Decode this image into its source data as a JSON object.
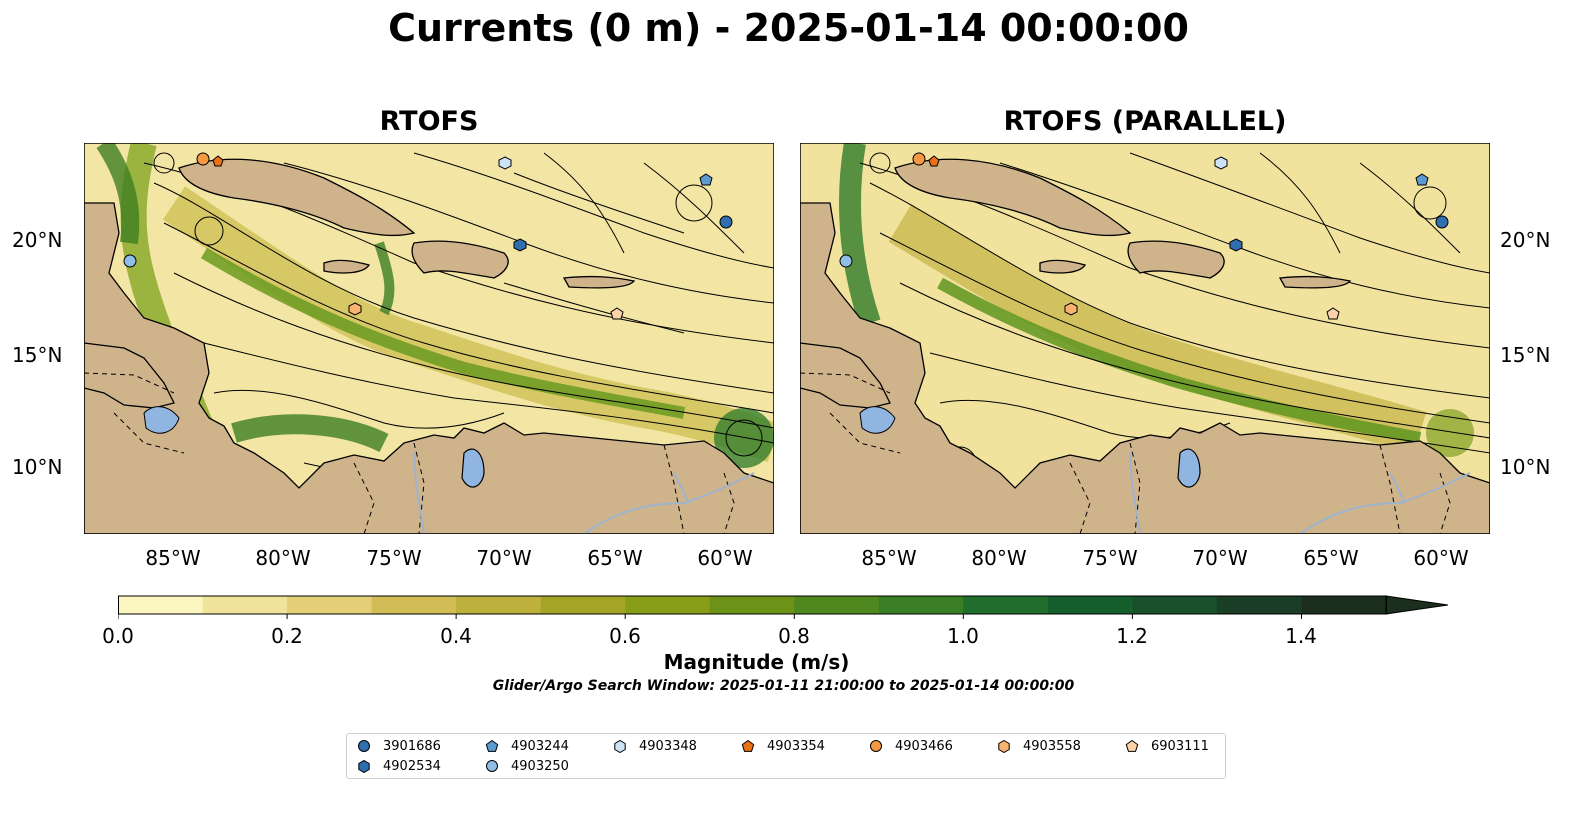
{
  "title": "Currents (0 m) - 2025-01-14 00:00:00",
  "panels": [
    {
      "title": "RTOFS"
    },
    {
      "title": "RTOFS (PARALLEL)"
    }
  ],
  "axes": {
    "x_ticks": [
      "85°W",
      "80°W",
      "75°W",
      "70°W",
      "65°W",
      "60°W"
    ],
    "y_ticks": [
      "20°N",
      "15°N",
      "10°N"
    ],
    "lon_range": [
      -89.5,
      -58.3
    ],
    "lat_range": [
      7,
      24.5
    ]
  },
  "colorbar": {
    "label": "Magnitude (m/s)",
    "ticks": [
      "0.0",
      "0.2",
      "0.4",
      "0.6",
      "0.8",
      "1.0",
      "1.2",
      "1.4"
    ],
    "range": [
      0,
      1.5
    ],
    "extend": "max",
    "colors": [
      "#fbf6c0",
      "#f0e49a",
      "#e2cf78",
      "#d1bc56",
      "#bdb03c",
      "#a4a526",
      "#889e18",
      "#6c9218",
      "#508820",
      "#3a7e24",
      "#1f6e2c",
      "#155f2c",
      "#17502a",
      "#1a3f26",
      "#1c2f1e"
    ]
  },
  "search_window": "Glider/Argo Search Window: 2025-01-11 21:00:00 to 2025-01-14 00:00:00",
  "legend": [
    {
      "label": "3901686",
      "marker": "circle",
      "color": "#2f6fb0"
    },
    {
      "label": "4902534",
      "marker": "hexagon",
      "color": "#2f6fb0"
    },
    {
      "label": "4903244",
      "marker": "pentagon",
      "color": "#5c9bd2"
    },
    {
      "label": "4903250",
      "marker": "circle",
      "color": "#8fbde6"
    },
    {
      "label": "4903348",
      "marker": "hexagon",
      "color": "#cde3f7"
    },
    {
      "label": "4903354",
      "marker": "pentagon",
      "color": "#ec7014"
    },
    {
      "label": "4903466",
      "marker": "circle",
      "color": "#f59a42"
    },
    {
      "label": "4903558",
      "marker": "hexagon",
      "color": "#f9b36e"
    },
    {
      "label": "6903111",
      "marker": "pentagon",
      "color": "#fcd2a8"
    }
  ],
  "colors": {
    "land": "#cfb38b",
    "lake": "#8fb5e0",
    "river": "#9fb4cc",
    "border": "#000000"
  }
}
